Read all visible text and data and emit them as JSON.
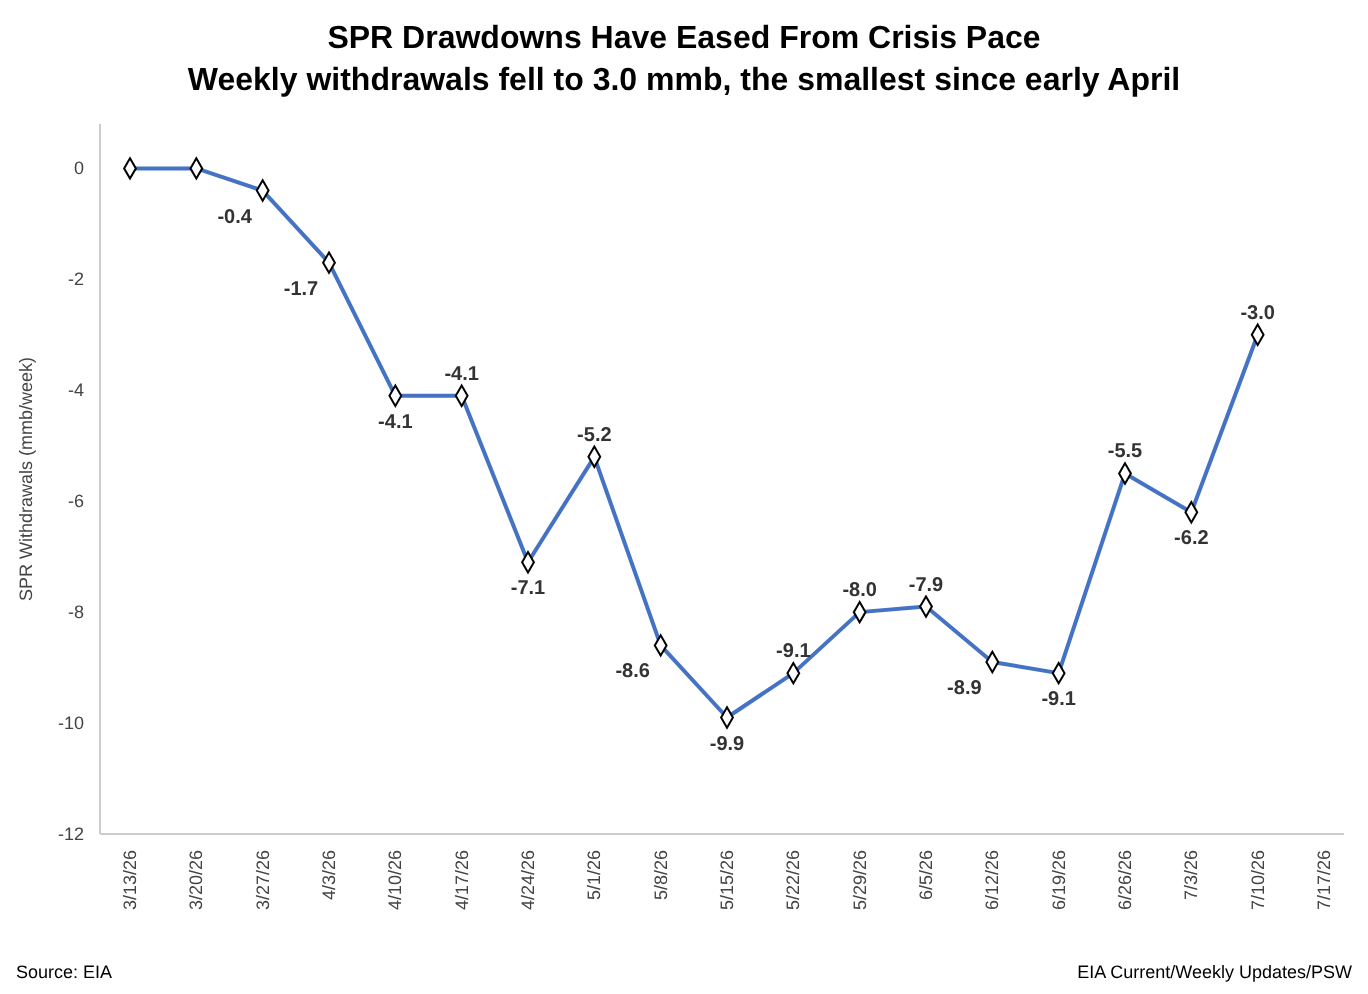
{
  "chart_data": {
    "type": "line",
    "title": "SPR Drawdowns Have Eased From Crisis Pace",
    "subtitle": "Weekly withdrawals fell to 3.0 mmb, the smallest since early April",
    "ylabel": "SPR Withdrawals (mmb/week)",
    "categories": [
      "3/13/26",
      "3/20/26",
      "3/27/26",
      "4/3/26",
      "4/10/26",
      "4/17/26",
      "4/24/26",
      "5/1/26",
      "5/8/26",
      "5/15/26",
      "5/22/26",
      "5/29/26",
      "6/5/26",
      "6/12/26",
      "6/19/26",
      "6/26/26",
      "7/3/26",
      "7/10/26",
      "7/17/26"
    ],
    "series": [
      {
        "color": "#4472c4",
        "values": [
          0,
          0,
          -0.4,
          -1.7,
          -4.1,
          -4.1,
          -7.1,
          -5.2,
          -8.6,
          -9.9,
          -9.1,
          -8.0,
          -7.9,
          -8.9,
          -9.1,
          -5.5,
          -6.2,
          -3.0,
          null
        ],
        "value_labels": [
          null,
          null,
          "-0.4",
          "-1.7",
          "-4.1",
          "-4.1",
          "-7.1",
          "-5.2",
          "-8.6",
          "-9.9",
          "-9.1",
          "-8.0",
          "-7.9",
          "-8.9",
          "-9.1",
          "-5.5",
          "-6.2",
          "-3.0",
          null
        ]
      }
    ],
    "ylim": [
      -12,
      0.8
    ],
    "yticks": [
      -12,
      -10,
      -8,
      -6,
      -4,
      -2,
      0
    ],
    "grid": false,
    "marker": "diamond",
    "line_style": "solid",
    "annotations": [
      "Source: EIA",
      "EIA Current/Weekly Updates/PSW"
    ]
  }
}
